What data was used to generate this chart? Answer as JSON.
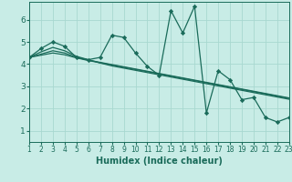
{
  "title": "",
  "xlabel": "Humidex (Indice chaleur)",
  "bg_color": "#c8ece6",
  "grid_color": "#a8d8d0",
  "line_color": "#1a6b5a",
  "xlim": [
    1,
    23
  ],
  "ylim": [
    0.5,
    6.8
  ],
  "xticks": [
    1,
    2,
    3,
    4,
    5,
    6,
    7,
    8,
    9,
    10,
    11,
    12,
    13,
    14,
    15,
    16,
    17,
    18,
    19,
    20,
    21,
    22,
    23
  ],
  "yticks": [
    1,
    2,
    3,
    4,
    5,
    6
  ],
  "series": [
    [
      4.3,
      4.7,
      5.0,
      4.8,
      4.3,
      4.2,
      4.3,
      5.3,
      5.2,
      4.5,
      3.9,
      3.5,
      6.4,
      5.4,
      6.6,
      1.8,
      3.7,
      3.3,
      2.4,
      2.5,
      1.6,
      1.4,
      1.6
    ],
    [
      4.3,
      4.55,
      4.75,
      4.6,
      4.35,
      4.2,
      4.05,
      3.92,
      3.82,
      3.72,
      3.62,
      3.52,
      3.42,
      3.32,
      3.22,
      3.12,
      3.02,
      2.92,
      2.82,
      2.72,
      2.62,
      2.52,
      2.42
    ],
    [
      4.3,
      4.45,
      4.6,
      4.5,
      4.3,
      4.18,
      4.08,
      3.98,
      3.88,
      3.78,
      3.68,
      3.58,
      3.48,
      3.38,
      3.28,
      3.18,
      3.08,
      2.98,
      2.88,
      2.78,
      2.68,
      2.58,
      2.48
    ],
    [
      4.3,
      4.4,
      4.5,
      4.42,
      4.28,
      4.16,
      4.06,
      3.96,
      3.86,
      3.76,
      3.66,
      3.56,
      3.46,
      3.36,
      3.26,
      3.16,
      3.06,
      2.96,
      2.86,
      2.76,
      2.66,
      2.56,
      2.46
    ]
  ],
  "xlabel_fontsize": 7,
  "tick_fontsize": 5.5,
  "ytick_fontsize": 6.5
}
